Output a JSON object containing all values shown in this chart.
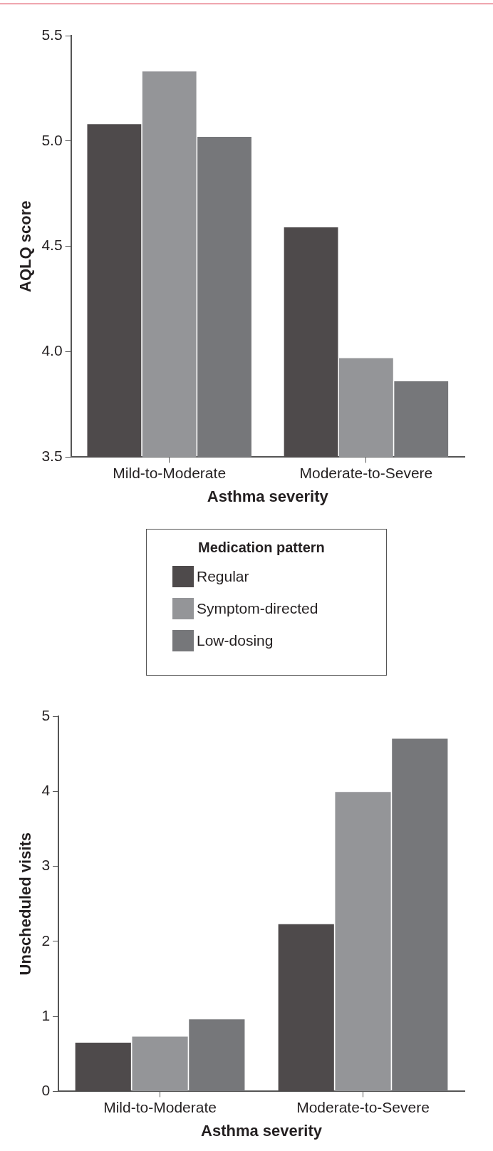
{
  "chart_data": [
    {
      "type": "bar",
      "categories": [
        "Mild-to-Moderate",
        "Moderate-to-Severe"
      ],
      "xlabel": "Asthma severity",
      "ylabel": "AQLQ score",
      "legend": "bottom",
      "legend_title": "Medication pattern",
      "ylim": [
        3.5,
        5.5
      ],
      "yticks": [
        3.5,
        {
          "value": 4,
          "label": "4.0"
        },
        4.5,
        {
          "value": 5,
          "label": "5.0"
        },
        5.5
      ],
      "grid": false,
      "series": [
        {
          "name": "Regular",
          "color": "#4e4a4b",
          "values": [
            5.08,
            4.59
          ]
        },
        {
          "name": "Symptom-directed",
          "color": "#949598",
          "values": [
            5.33,
            3.97
          ]
        },
        {
          "name": "Low-dosing",
          "color": "#76777a",
          "values": [
            5.02,
            3.86
          ]
        }
      ]
    },
    {
      "type": "bar",
      "categories": [
        "Mild-to-Moderate",
        "Moderate-to-Severe"
      ],
      "xlabel": "Asthma severity",
      "ylabel": "Unscheduled visits",
      "ylim": [
        0,
        5
      ],
      "yticks": [
        0,
        1,
        2,
        3,
        4,
        5
      ],
      "grid": false,
      "series": [
        {
          "color": "#4e4a4b",
          "values": [
            0.65,
            2.23
          ]
        },
        {
          "color": "#949598",
          "values": [
            0.73,
            3.99
          ]
        },
        {
          "color": "#76777a",
          "values": [
            0.96,
            4.7
          ]
        }
      ]
    }
  ]
}
